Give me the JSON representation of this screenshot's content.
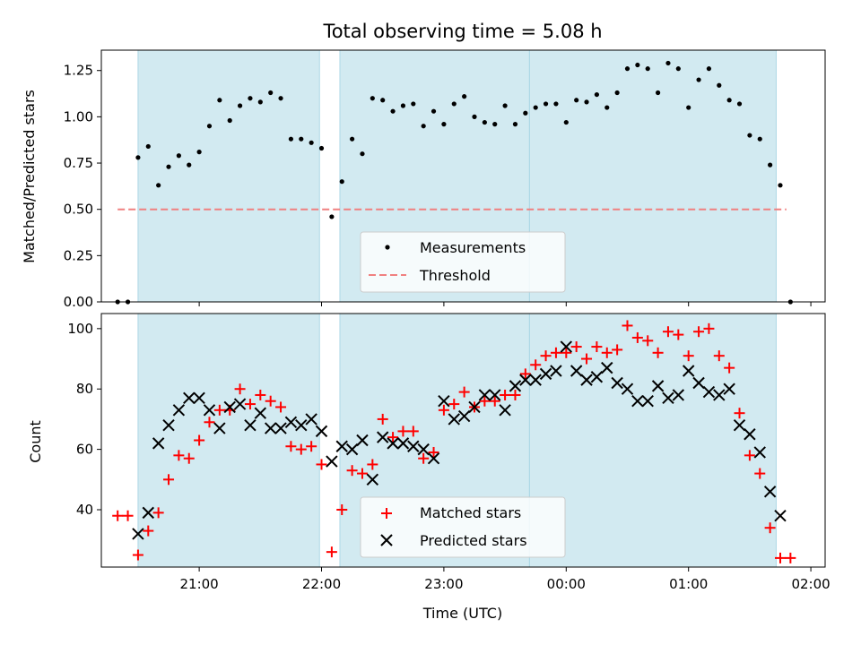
{
  "chart_data": [
    {
      "type": "scatter",
      "title": "Total observing time = 5.08 h",
      "xlabel": "",
      "ylabel": "Matched/Predicted stars",
      "ylim": [
        0,
        1.36
      ],
      "yticks": [
        "0.00",
        "0.25",
        "0.50",
        "0.75",
        "1.00",
        "1.25"
      ],
      "ytick_values": [
        0,
        0.25,
        0.5,
        0.75,
        1.0,
        1.25
      ],
      "xlim": [
        "20:12",
        "02:07"
      ],
      "shaded_intervals": [
        [
          "20:30",
          "21:59"
        ],
        [
          "22:09",
          "23:42"
        ],
        [
          "23:42",
          "01:43"
        ]
      ],
      "shade_color": "#add8e6",
      "legend": {
        "placement": "lower-center",
        "entries": [
          "Measurements",
          "Threshold"
        ]
      },
      "threshold": {
        "name": "Threshold",
        "value": 0.5,
        "x_range": [
          "20:20",
          "01:48"
        ],
        "color": "#f08080"
      },
      "series": [
        {
          "name": "Measurements",
          "color": "#000000",
          "points": [
            [
              "20:20",
              0.0
            ],
            [
              "20:25",
              0.0
            ],
            [
              "20:30",
              0.78
            ],
            [
              "20:35",
              0.84
            ],
            [
              "20:40",
              0.63
            ],
            [
              "20:45",
              0.73
            ],
            [
              "20:50",
              0.79
            ],
            [
              "20:55",
              0.74
            ],
            [
              "21:00",
              0.81
            ],
            [
              "21:05",
              0.95
            ],
            [
              "21:10",
              1.09
            ],
            [
              "21:15",
              0.98
            ],
            [
              "21:20",
              1.06
            ],
            [
              "21:25",
              1.1
            ],
            [
              "21:30",
              1.08
            ],
            [
              "21:35",
              1.13
            ],
            [
              "21:40",
              1.1
            ],
            [
              "21:45",
              0.88
            ],
            [
              "21:50",
              0.88
            ],
            [
              "21:55",
              0.86
            ],
            [
              "22:00",
              0.83
            ],
            [
              "22:05",
              0.46
            ],
            [
              "22:10",
              0.65
            ],
            [
              "22:15",
              0.88
            ],
            [
              "22:20",
              0.8
            ],
            [
              "22:25",
              1.1
            ],
            [
              "22:30",
              1.09
            ],
            [
              "22:35",
              1.03
            ],
            [
              "22:40",
              1.06
            ],
            [
              "22:45",
              1.07
            ],
            [
              "22:50",
              0.95
            ],
            [
              "22:55",
              1.03
            ],
            [
              "23:00",
              0.96
            ],
            [
              "23:05",
              1.07
            ],
            [
              "23:10",
              1.11
            ],
            [
              "23:15",
              1.0
            ],
            [
              "23:20",
              0.97
            ],
            [
              "23:25",
              0.96
            ],
            [
              "23:30",
              1.06
            ],
            [
              "23:35",
              0.96
            ],
            [
              "23:40",
              1.02
            ],
            [
              "23:45",
              1.05
            ],
            [
              "23:50",
              1.07
            ],
            [
              "23:55",
              1.07
            ],
            [
              "00:00",
              0.97
            ],
            [
              "00:05",
              1.09
            ],
            [
              "00:10",
              1.08
            ],
            [
              "00:15",
              1.12
            ],
            [
              "00:20",
              1.05
            ],
            [
              "00:25",
              1.13
            ],
            [
              "00:30",
              1.26
            ],
            [
              "00:35",
              1.28
            ],
            [
              "00:40",
              1.26
            ],
            [
              "00:45",
              1.13
            ],
            [
              "00:50",
              1.29
            ],
            [
              "00:55",
              1.26
            ],
            [
              "01:00",
              1.05
            ],
            [
              "01:05",
              1.2
            ],
            [
              "01:10",
              1.26
            ],
            [
              "01:15",
              1.17
            ],
            [
              "01:20",
              1.09
            ],
            [
              "01:25",
              1.07
            ],
            [
              "01:30",
              0.9
            ],
            [
              "01:35",
              0.88
            ],
            [
              "01:40",
              0.74
            ],
            [
              "01:45",
              0.63
            ],
            [
              "01:50",
              0.0
            ]
          ]
        }
      ]
    },
    {
      "type": "scatter",
      "title": "",
      "xlabel": "Time (UTC)",
      "ylabel": "Count",
      "ylim": [
        21,
        105
      ],
      "yticks": [
        "40",
        "60",
        "80",
        "100"
      ],
      "ytick_values": [
        40,
        60,
        80,
        100
      ],
      "xlim": [
        "20:12",
        "02:07"
      ],
      "xticks": [
        "21:00",
        "22:00",
        "23:00",
        "00:00",
        "01:00",
        "02:00"
      ],
      "shaded_intervals": [
        [
          "20:30",
          "21:59"
        ],
        [
          "22:09",
          "23:42"
        ],
        [
          "23:42",
          "01:43"
        ]
      ],
      "shade_color": "#add8e6",
      "legend": {
        "placement": "lower-center",
        "entries": [
          "Matched stars",
          "Predicted stars"
        ]
      },
      "series": [
        {
          "name": "Matched stars",
          "marker": "+",
          "color": "#ff0000",
          "points": [
            [
              "20:20",
              38
            ],
            [
              "20:25",
              38
            ],
            [
              "20:30",
              25
            ],
            [
              "20:35",
              33
            ],
            [
              "20:40",
              39
            ],
            [
              "20:45",
              50
            ],
            [
              "20:50",
              58
            ],
            [
              "20:55",
              57
            ],
            [
              "21:00",
              63
            ],
            [
              "21:05",
              69
            ],
            [
              "21:10",
              73
            ],
            [
              "21:15",
              73
            ],
            [
              "21:20",
              80
            ],
            [
              "21:25",
              75
            ],
            [
              "21:30",
              78
            ],
            [
              "21:35",
              76
            ],
            [
              "21:40",
              74
            ],
            [
              "21:45",
              61
            ],
            [
              "21:50",
              60
            ],
            [
              "21:55",
              61
            ],
            [
              "22:00",
              55
            ],
            [
              "22:05",
              26
            ],
            [
              "22:10",
              40
            ],
            [
              "22:15",
              53
            ],
            [
              "22:20",
              52
            ],
            [
              "22:25",
              55
            ],
            [
              "22:30",
              70
            ],
            [
              "22:35",
              64
            ],
            [
              "22:40",
              66
            ],
            [
              "22:45",
              66
            ],
            [
              "22:50",
              57
            ],
            [
              "22:55",
              59
            ],
            [
              "23:00",
              73
            ],
            [
              "23:05",
              75
            ],
            [
              "23:10",
              79
            ],
            [
              "23:15",
              74
            ],
            [
              "23:20",
              76
            ],
            [
              "23:25",
              76
            ],
            [
              "23:30",
              78
            ],
            [
              "23:35",
              78
            ],
            [
              "23:40",
              85
            ],
            [
              "23:45",
              88
            ],
            [
              "23:50",
              91
            ],
            [
              "23:55",
              92
            ],
            [
              "00:00",
              92
            ],
            [
              "00:05",
              94
            ],
            [
              "00:10",
              90
            ],
            [
              "00:15",
              94
            ],
            [
              "00:20",
              92
            ],
            [
              "00:25",
              93
            ],
            [
              "00:30",
              101
            ],
            [
              "00:35",
              97
            ],
            [
              "00:40",
              96
            ],
            [
              "00:45",
              92
            ],
            [
              "00:50",
              99
            ],
            [
              "00:55",
              98
            ],
            [
              "01:00",
              91
            ],
            [
              "01:05",
              99
            ],
            [
              "01:10",
              100
            ],
            [
              "01:15",
              91
            ],
            [
              "01:20",
              87
            ],
            [
              "01:25",
              72
            ],
            [
              "01:30",
              58
            ],
            [
              "01:35",
              52
            ],
            [
              "01:40",
              34
            ],
            [
              "01:45",
              24
            ],
            [
              "01:50",
              24
            ]
          ]
        },
        {
          "name": "Predicted stars",
          "marker": "x",
          "color": "#000000",
          "points": [
            [
              "20:30",
              32
            ],
            [
              "20:35",
              39
            ],
            [
              "20:40",
              62
            ],
            [
              "20:45",
              68
            ],
            [
              "20:50",
              73
            ],
            [
              "20:55",
              77
            ],
            [
              "21:00",
              77
            ],
            [
              "21:05",
              73
            ],
            [
              "21:10",
              67
            ],
            [
              "21:15",
              74
            ],
            [
              "21:20",
              75
            ],
            [
              "21:25",
              68
            ],
            [
              "21:30",
              72
            ],
            [
              "21:35",
              67
            ],
            [
              "21:40",
              67
            ],
            [
              "21:45",
              69
            ],
            [
              "21:50",
              68
            ],
            [
              "21:55",
              70
            ],
            [
              "22:00",
              66
            ],
            [
              "22:05",
              56
            ],
            [
              "22:10",
              61
            ],
            [
              "22:15",
              60
            ],
            [
              "22:20",
              63
            ],
            [
              "22:25",
              50
            ],
            [
              "22:30",
              64
            ],
            [
              "22:35",
              62
            ],
            [
              "22:40",
              62
            ],
            [
              "22:45",
              61
            ],
            [
              "22:50",
              60
            ],
            [
              "22:55",
              57
            ],
            [
              "23:00",
              76
            ],
            [
              "23:05",
              70
            ],
            [
              "23:10",
              71
            ],
            [
              "23:15",
              74
            ],
            [
              "23:20",
              78
            ],
            [
              "23:25",
              78
            ],
            [
              "23:30",
              73
            ],
            [
              "23:35",
              81
            ],
            [
              "23:40",
              83
            ],
            [
              "23:45",
              83
            ],
            [
              "23:50",
              85
            ],
            [
              "23:55",
              86
            ],
            [
              "00:00",
              94
            ],
            [
              "00:05",
              86
            ],
            [
              "00:10",
              83
            ],
            [
              "00:15",
              84
            ],
            [
              "00:20",
              87
            ],
            [
              "00:25",
              82
            ],
            [
              "00:30",
              80
            ],
            [
              "00:35",
              76
            ],
            [
              "00:40",
              76
            ],
            [
              "00:45",
              81
            ],
            [
              "00:50",
              77
            ],
            [
              "00:55",
              78
            ],
            [
              "01:00",
              86
            ],
            [
              "01:05",
              82
            ],
            [
              "01:10",
              79
            ],
            [
              "01:15",
              78
            ],
            [
              "01:20",
              80
            ],
            [
              "01:25",
              68
            ],
            [
              "01:30",
              65
            ],
            [
              "01:35",
              59
            ],
            [
              "01:40",
              46
            ],
            [
              "01:45",
              38
            ]
          ]
        }
      ]
    }
  ]
}
